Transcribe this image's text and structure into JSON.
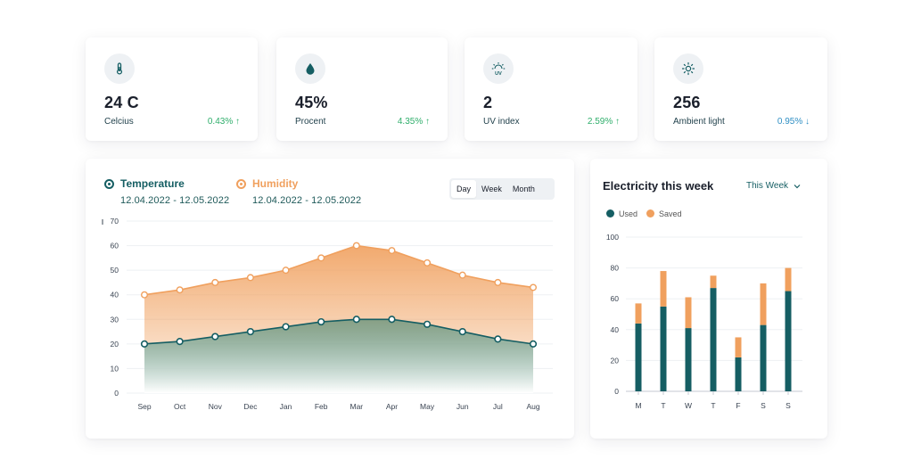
{
  "colors": {
    "teal": "#155e63",
    "orange": "#f0a05e",
    "up": "#2fae6b",
    "down": "#2f8fc4"
  },
  "stats": [
    {
      "icon": "thermometer-icon",
      "value": "24 C",
      "label": "Celcius",
      "change": "0.43% ↑",
      "trend": "up"
    },
    {
      "icon": "water-drop-icon",
      "value": "45%",
      "label": "Procent",
      "change": "4.35% ↑",
      "trend": "up"
    },
    {
      "icon": "uv-sun-icon",
      "value": "2",
      "label": "UV index",
      "change": "2.59% ↑",
      "trend": "up"
    },
    {
      "icon": "light-sun-icon",
      "value": "256",
      "label": "Ambient light",
      "change": "0.95% ↓",
      "trend": "down"
    }
  ],
  "main_chart": {
    "legend": [
      {
        "name": "Temperature",
        "dates": "12.04.2022 - 12.05.2022"
      },
      {
        "name": "Humidity",
        "dates": "12.04.2022 - 12.05.2022"
      }
    ],
    "range_tabs": [
      "Day",
      "Week",
      "Month"
    ],
    "active_tab": "Day"
  },
  "electricity": {
    "title": "Electricity this week",
    "period": "This Week",
    "legend": [
      "Used",
      "Saved"
    ]
  },
  "chart_data": [
    {
      "type": "area",
      "title": "",
      "x": [
        "Sep",
        "Oct",
        "Nov",
        "Dec",
        "Jan",
        "Feb",
        "Mar",
        "Apr",
        "May",
        "Jun",
        "Jul",
        "Aug"
      ],
      "series": [
        {
          "name": "Humidity",
          "values": [
            40,
            42,
            45,
            47,
            50,
            55,
            60,
            58,
            53,
            48,
            45,
            43
          ]
        },
        {
          "name": "Temperature",
          "values": [
            20,
            21,
            23,
            25,
            27,
            29,
            30,
            30,
            28,
            25,
            22,
            20
          ]
        }
      ],
      "yticks": [
        0,
        10,
        20,
        30,
        40,
        50,
        60,
        70
      ],
      "ylim": [
        0,
        70
      ],
      "grid": true
    },
    {
      "type": "bar",
      "title": "Electricity this week",
      "categories": [
        "M",
        "T",
        "W",
        "T",
        "F",
        "S",
        "S"
      ],
      "series": [
        {
          "name": "Used",
          "values": [
            44,
            55,
            41,
            67,
            22,
            43,
            65
          ]
        },
        {
          "name": "Saved",
          "values": [
            13,
            23,
            20,
            8,
            13,
            27,
            15
          ]
        }
      ],
      "yticks": [
        0,
        20,
        40,
        60,
        80,
        100
      ],
      "ylim": [
        0,
        100
      ],
      "stacked": true,
      "grid": true
    }
  ]
}
